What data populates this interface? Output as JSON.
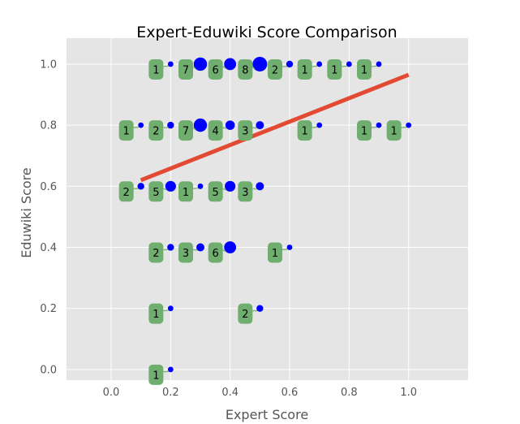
{
  "chart_data": {
    "type": "scatter",
    "title": "Expert-Eduwiki Score Comparison",
    "xlabel": "Expert Score",
    "ylabel": "Eduwiki Score",
    "xlim": [
      -0.15,
      1.2
    ],
    "ylim": [
      -0.035,
      1.085
    ],
    "xticks": [
      "0.0",
      "0.2",
      "0.4",
      "0.6",
      "0.8",
      "1.0"
    ],
    "yticks": [
      "0.0",
      "0.2",
      "0.4",
      "0.6",
      "0.8",
      "1.0"
    ],
    "grid": true,
    "colors": {
      "background": "#e5e5e5",
      "grid": "#ffffff",
      "point": "#0000ff",
      "label_box": "#6fae6f",
      "trend": "#e24a33"
    },
    "trend_line": {
      "x": [
        0.1,
        1.0
      ],
      "y": [
        0.62,
        0.965
      ]
    },
    "points": [
      {
        "x": 0.2,
        "y": 1.0,
        "count": "1"
      },
      {
        "x": 0.3,
        "y": 1.0,
        "count": "7"
      },
      {
        "x": 0.4,
        "y": 1.0,
        "count": "6"
      },
      {
        "x": 0.5,
        "y": 1.0,
        "count": "8"
      },
      {
        "x": 0.6,
        "y": 1.0,
        "count": "2"
      },
      {
        "x": 0.7,
        "y": 1.0,
        "count": "1"
      },
      {
        "x": 0.8,
        "y": 1.0,
        "count": "1"
      },
      {
        "x": 0.9,
        "y": 1.0,
        "count": "1"
      },
      {
        "x": 0.1,
        "y": 0.8,
        "count": "1"
      },
      {
        "x": 0.2,
        "y": 0.8,
        "count": "2"
      },
      {
        "x": 0.3,
        "y": 0.8,
        "count": "7"
      },
      {
        "x": 0.4,
        "y": 0.8,
        "count": "4"
      },
      {
        "x": 0.5,
        "y": 0.8,
        "count": "3"
      },
      {
        "x": 0.7,
        "y": 0.8,
        "count": "1"
      },
      {
        "x": 0.9,
        "y": 0.8,
        "count": "1"
      },
      {
        "x": 1.0,
        "y": 0.8,
        "count": "1"
      },
      {
        "x": 0.1,
        "y": 0.6,
        "count": "2"
      },
      {
        "x": 0.2,
        "y": 0.6,
        "count": "5"
      },
      {
        "x": 0.3,
        "y": 0.6,
        "count": "1"
      },
      {
        "x": 0.4,
        "y": 0.6,
        "count": "5"
      },
      {
        "x": 0.5,
        "y": 0.6,
        "count": "3"
      },
      {
        "x": 0.2,
        "y": 0.4,
        "count": "2"
      },
      {
        "x": 0.3,
        "y": 0.4,
        "count": "3"
      },
      {
        "x": 0.4,
        "y": 0.4,
        "count": "6"
      },
      {
        "x": 0.6,
        "y": 0.4,
        "count": "1"
      },
      {
        "x": 0.2,
        "y": 0.2,
        "count": "1"
      },
      {
        "x": 0.5,
        "y": 0.2,
        "count": "2"
      },
      {
        "x": 0.2,
        "y": 0.0,
        "count": "1"
      }
    ]
  }
}
